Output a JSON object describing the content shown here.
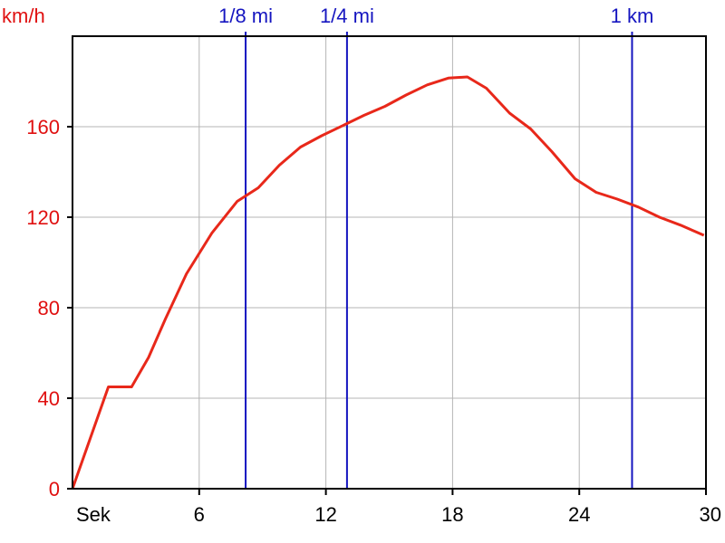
{
  "chart_data": {
    "type": "line",
    "ylabel": "km/h",
    "xlabel": "Sek",
    "xlim": [
      0,
      30
    ],
    "ylim": [
      0,
      200
    ],
    "grid": true,
    "x_ticks": [
      6,
      12,
      18,
      24,
      30
    ],
    "y_ticks": [
      0,
      40,
      80,
      120,
      160
    ],
    "series": [
      {
        "color": "#e8281a",
        "points": [
          [
            0,
            0
          ],
          [
            1.7,
            45
          ],
          [
            2.8,
            45
          ],
          [
            3.6,
            58
          ],
          [
            4.4,
            75
          ],
          [
            5.4,
            95
          ],
          [
            6.6,
            113
          ],
          [
            7.8,
            127
          ],
          [
            8.8,
            133
          ],
          [
            9.8,
            143
          ],
          [
            10.8,
            151
          ],
          [
            11.8,
            156
          ],
          [
            12.8,
            160.5
          ],
          [
            13.8,
            165
          ],
          [
            14.8,
            169
          ],
          [
            15.8,
            174
          ],
          [
            16.8,
            178.5
          ],
          [
            17.8,
            181.5
          ],
          [
            18.7,
            182
          ],
          [
            19.6,
            177
          ],
          [
            20.7,
            166
          ],
          [
            21.7,
            159
          ],
          [
            22.7,
            149
          ],
          [
            23.8,
            137
          ],
          [
            24.8,
            131
          ],
          [
            25.8,
            128
          ],
          [
            26.8,
            124.5
          ],
          [
            27.8,
            120
          ],
          [
            28.8,
            116.5
          ],
          [
            29.9,
            112
          ]
        ]
      }
    ],
    "markers": [
      {
        "label": "1/8 mi",
        "x": 8.2
      },
      {
        "label": "1/4 mi",
        "x": 13.0
      },
      {
        "label": "1 km",
        "x": 26.5
      }
    ]
  },
  "colors": {
    "line": "#e8281a",
    "marker": "#1515c0",
    "y_text": "#e01010",
    "grid": "#b4b4b4",
    "axis": "#000000"
  }
}
